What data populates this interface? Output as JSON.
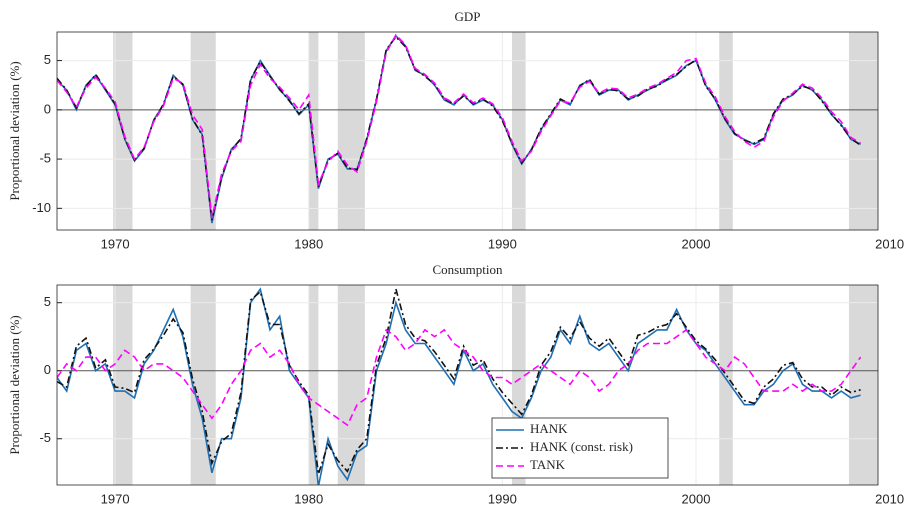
{
  "chart_data": [
    {
      "type": "line",
      "title": "GDP",
      "y_label": "Proportional deviation (%)",
      "x": [
        1967,
        1967.5,
        1968,
        1968.5,
        1969,
        1969.5,
        1970,
        1970.5,
        1971,
        1971.5,
        1972,
        1972.5,
        1973,
        1973.5,
        1974,
        1974.5,
        1975,
        1975.5,
        1976,
        1976.5,
        1977,
        1977.5,
        1978,
        1978.5,
        1979,
        1979.5,
        1980,
        1980.5,
        1981,
        1981.5,
        1982,
        1982.5,
        1983,
        1983.5,
        1984,
        1984.5,
        1985,
        1985.5,
        1986,
        1986.5,
        1987,
        1987.5,
        1988,
        1988.5,
        1989,
        1989.5,
        1990,
        1990.5,
        1991,
        1991.5,
        1992,
        1992.5,
        1993,
        1993.5,
        1994,
        1994.5,
        1995,
        1995.5,
        1996,
        1996.5,
        1997,
        1997.5,
        1998,
        1998.5,
        1999,
        1999.5,
        2000,
        2000.5,
        2001,
        2001.5,
        2002,
        2002.5,
        2003,
        2003.5,
        2004,
        2004.5,
        2005,
        2005.5,
        2006,
        2006.5,
        2007,
        2007.5,
        2008,
        2008.5
      ],
      "series": [
        {
          "color": "#1f6fb4",
          "dash": "solid",
          "values": [
            3,
            2,
            0,
            2.5,
            3.5,
            2,
            0.5,
            -3,
            -5.2,
            -4,
            -1,
            0.5,
            3.5,
            2.5,
            -1,
            -2.5,
            -11.5,
            -7,
            -4,
            -3,
            3,
            5,
            3.5,
            2,
            1,
            -0.5,
            0.5,
            -8,
            -5,
            -4.5,
            -6,
            -6,
            -3,
            1,
            6,
            7.5,
            6.5,
            4,
            3.5,
            2.5,
            1,
            0.5,
            1.5,
            0.5,
            1,
            0.5,
            -1,
            -3.5,
            -5.5,
            -4,
            -2,
            -0.5,
            1,
            0.5,
            2.5,
            3,
            1.5,
            2,
            2,
            1,
            1.5,
            2,
            2.5,
            3,
            3.5,
            4.5,
            5,
            2.5,
            1,
            -1,
            -2.5,
            -3,
            -3.5,
            -3,
            -0.5,
            1,
            1.5,
            2.5,
            2,
            1,
            -0.5,
            -1.5,
            -3,
            -3.5
          ]
        },
        {
          "color": "#111111",
          "dash": "dashdot",
          "values": [
            3.2,
            2,
            0.2,
            2.4,
            3.6,
            2.1,
            0.6,
            -2.9,
            -5.1,
            -3.9,
            -1.1,
            0.6,
            3.4,
            2.6,
            -0.9,
            -2.6,
            -11.2,
            -6.8,
            -4.1,
            -2.9,
            3.1,
            4.9,
            3.4,
            2.1,
            0.9,
            -0.4,
            0.6,
            -7.8,
            -5.1,
            -4.4,
            -5.9,
            -6.1,
            -2.9,
            1.1,
            6.1,
            7.4,
            6.4,
            4.1,
            3.4,
            2.6,
            1.1,
            0.6,
            1.4,
            0.6,
            1.1,
            0.4,
            -1.1,
            -3.4,
            -5.4,
            -4.1,
            -1.9,
            -0.4,
            1.1,
            0.6,
            2.4,
            3.1,
            1.6,
            2.1,
            1.9,
            1.1,
            1.4,
            2.1,
            2.4,
            3.1,
            3.6,
            4.4,
            5.1,
            2.4,
            1.1,
            -0.9,
            -2.4,
            -3.1,
            -3.4,
            -2.9,
            -0.4,
            1.1,
            1.6,
            2.4,
            2.1,
            0.9,
            -0.4,
            -1.6,
            -2.9,
            -3.6
          ]
        },
        {
          "color": "#ff00ff",
          "dash": "dashed",
          "values": [
            3,
            1.8,
            0.3,
            2.2,
            3.3,
            2.2,
            0.8,
            -2.7,
            -5,
            -3.8,
            -1.2,
            0.4,
            3.2,
            2.7,
            -0.5,
            -2,
            -11,
            -6.5,
            -4.2,
            -3.2,
            2.5,
            4.6,
            3.2,
            2.3,
            1.2,
            0,
            1.5,
            -7.5,
            -5.3,
            -4.2,
            -5.6,
            -6.3,
            -3.2,
            0.8,
            5.8,
            7.6,
            6.6,
            4.2,
            3.6,
            2.7,
            1.2,
            0.7,
            1.6,
            0.7,
            1.2,
            0.6,
            -0.8,
            -3.2,
            -5.2,
            -4.2,
            -2.2,
            -0.6,
            0.9,
            0.7,
            2.3,
            2.9,
            1.7,
            2.2,
            2.1,
            1.2,
            1.6,
            2.2,
            2.6,
            3.2,
            3.8,
            5,
            5.2,
            2.7,
            1.3,
            -0.7,
            -2.2,
            -3.2,
            -3.8,
            -3.2,
            -0.7,
            0.9,
            1.7,
            2.6,
            2.2,
            1.2,
            -0.2,
            -1.2,
            -2.8,
            -3.4
          ]
        }
      ],
      "recessions": [
        [
          1969.9,
          1970.9
        ],
        [
          1973.9,
          1975.2
        ],
        [
          1980,
          1980.5
        ],
        [
          1981.5,
          1982.9
        ],
        [
          1990.5,
          1991.2
        ],
        [
          2001.2,
          2001.9
        ],
        [
          2007.9,
          2009.4
        ]
      ],
      "xlim": [
        1967,
        2009.4
      ],
      "ylim": [
        -12.2,
        7.9
      ],
      "xticks": [
        1970,
        1980,
        1990,
        2000,
        2010
      ],
      "yticks": [
        -10,
        -5,
        0,
        5
      ],
      "grid": true
    },
    {
      "type": "line",
      "title": "Consumption",
      "y_label": "Proportional deviation (%)",
      "x": [
        1967,
        1967.5,
        1968,
        1968.5,
        1969,
        1969.5,
        1970,
        1970.5,
        1971,
        1971.5,
        1972,
        1972.5,
        1973,
        1973.5,
        1974,
        1974.5,
        1975,
        1975.5,
        1976,
        1976.5,
        1977,
        1977.5,
        1978,
        1978.5,
        1979,
        1979.5,
        1980,
        1980.5,
        1981,
        1981.5,
        1982,
        1982.5,
        1983,
        1983.5,
        1984,
        1984.5,
        1985,
        1985.5,
        1986,
        1986.5,
        1987,
        1987.5,
        1988,
        1988.5,
        1989,
        1989.5,
        1990,
        1990.5,
        1991,
        1991.5,
        1992,
        1992.5,
        1993,
        1993.5,
        1994,
        1994.5,
        1995,
        1995.5,
        1996,
        1996.5,
        1997,
        1997.5,
        1998,
        1998.5,
        1999,
        1999.5,
        2000,
        2000.5,
        2001,
        2001.5,
        2002,
        2002.5,
        2003,
        2003.5,
        2004,
        2004.5,
        2005,
        2005.5,
        2006,
        2006.5,
        2007,
        2007.5,
        2008,
        2008.5
      ],
      "series": [
        {
          "name": "HANK",
          "color": "#1f6fb4",
          "dash": "solid",
          "values": [
            -0.5,
            -1.5,
            1.5,
            2,
            0,
            0.5,
            -1.5,
            -1.5,
            -2,
            0.5,
            1.5,
            3,
            4.5,
            2.5,
            -1,
            -3.5,
            -7.5,
            -5,
            -5,
            -2,
            5,
            6,
            3,
            4,
            0,
            -1,
            -2,
            -8.5,
            -5,
            -7,
            -8,
            -6,
            -5.5,
            0,
            2,
            5,
            3,
            2,
            2,
            1,
            0,
            -1,
            1.5,
            0,
            0.5,
            -1,
            -2,
            -3,
            -3.5,
            -2,
            0,
            1,
            3,
            2,
            4,
            2,
            1.5,
            2,
            1,
            0,
            2,
            2.5,
            3,
            3,
            4.5,
            3,
            2,
            1.5,
            0.5,
            -0.5,
            -1.5,
            -2.5,
            -2.5,
            -1.5,
            -1,
            0,
            0.5,
            -1,
            -1.5,
            -1.5,
            -2,
            -1.5,
            -2,
            -1.8
          ]
        },
        {
          "name": "HANK (const. risk)",
          "color": "#111111",
          "dash": "dashdot",
          "values": [
            -0.8,
            -1.2,
            1.8,
            2.4,
            0.2,
            0.8,
            -1.2,
            -1.3,
            -1.6,
            0.8,
            1.6,
            2.6,
            3.8,
            2.8,
            -0.6,
            -3,
            -6.8,
            -5.2,
            -4.6,
            -1.6,
            5.2,
            5.8,
            3.4,
            3.4,
            0.4,
            -0.8,
            -1.8,
            -7.6,
            -5.4,
            -6.6,
            -7.4,
            -5.8,
            -5,
            0.4,
            2.4,
            6,
            3.4,
            2.4,
            2.2,
            1.4,
            0.4,
            -0.6,
            1.8,
            0.4,
            0.8,
            -0.6,
            -1.6,
            -2.4,
            -3.2,
            -1.8,
            0.4,
            1.4,
            3.2,
            2.4,
            3.6,
            2.4,
            1.8,
            2.4,
            1.4,
            0.4,
            2.6,
            2.8,
            3.2,
            3.4,
            4.2,
            3.2,
            2.2,
            1.6,
            0.8,
            -0.2,
            -1.2,
            -2.2,
            -2.4,
            -1.2,
            -0.6,
            0.4,
            0.6,
            -0.6,
            -1.2,
            -1.2,
            -1.8,
            -1.2,
            -1.6,
            -1.4
          ]
        },
        {
          "name": "TANK",
          "color": "#ff00ff",
          "dash": "dashed",
          "values": [
            -0.5,
            0.5,
            0,
            1,
            1,
            0,
            0.5,
            1.5,
            1,
            0,
            0.5,
            0.5,
            0,
            -0.5,
            -1.5,
            -2.5,
            -3.5,
            -2.5,
            -1,
            0,
            1.5,
            2,
            1,
            1.5,
            0.5,
            -1,
            -2,
            -2.5,
            -3,
            -3.5,
            -4,
            -2.5,
            -2,
            1,
            3,
            2.5,
            1.5,
            2,
            3,
            2.5,
            3,
            2,
            1.5,
            1,
            0,
            -0.5,
            -0.5,
            -1,
            -0.5,
            0,
            0.5,
            0,
            -0.5,
            -1,
            0,
            -0.5,
            -1.5,
            -1,
            0,
            0.5,
            1.5,
            2,
            2,
            2,
            2.5,
            3,
            2,
            1,
            0.5,
            0,
            1,
            0.5,
            -0.5,
            -1.5,
            -1.5,
            -1.5,
            -1,
            -1.5,
            -1,
            -1.5,
            -1.5,
            -1,
            0,
            1
          ]
        }
      ],
      "recessions": [
        [
          1969.9,
          1970.9
        ],
        [
          1973.9,
          1975.2
        ],
        [
          1980,
          1980.5
        ],
        [
          1981.5,
          1982.9
        ],
        [
          1990.5,
          1991.2
        ],
        [
          2001.2,
          2001.9
        ],
        [
          2007.9,
          2009.4
        ]
      ],
      "xlim": [
        1967,
        2009.4
      ],
      "ylim": [
        -8.4,
        6.3
      ],
      "xticks": [
        1970,
        1980,
        1990,
        2000,
        2010
      ],
      "yticks": [
        -5,
        0,
        5
      ],
      "grid": true,
      "legend": "lower-center"
    }
  ]
}
